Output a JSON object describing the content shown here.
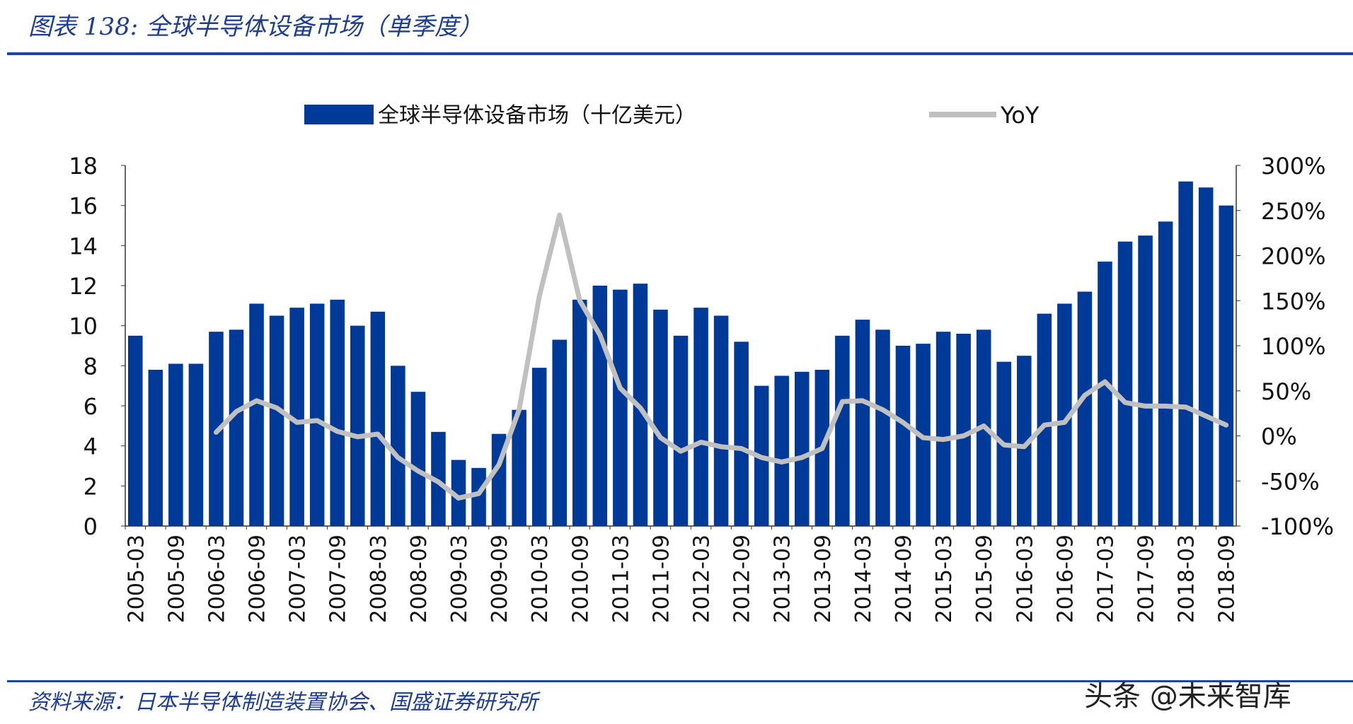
{
  "header": {
    "title": "图表 138:  全球半导体设备市场（单季度）"
  },
  "footer": {
    "source": "资料来源：日本半导体制造装置协会、国盛证券研究所",
    "watermark": "头条 @未来智库"
  },
  "colors": {
    "bar": "#003a98",
    "line": "#c0c0c0",
    "text": "#1c3d94"
  },
  "chart_data": {
    "type": "bar",
    "title": "",
    "legend": [
      "全球半导体设备市场（十亿美元）",
      "YoY"
    ],
    "legend_position": "top",
    "categories": [
      "2005-03",
      "2005-06",
      "2005-09",
      "2005-12",
      "2006-03",
      "2006-06",
      "2006-09",
      "2006-12",
      "2007-03",
      "2007-06",
      "2007-09",
      "2007-12",
      "2008-03",
      "2008-06",
      "2008-09",
      "2008-12",
      "2009-03",
      "2009-06",
      "2009-09",
      "2009-12",
      "2010-03",
      "2010-06",
      "2010-09",
      "2010-12",
      "2011-03",
      "2011-06",
      "2011-09",
      "2011-12",
      "2012-03",
      "2012-06",
      "2012-09",
      "2012-12",
      "2013-03",
      "2013-06",
      "2013-09",
      "2013-12",
      "2014-03",
      "2014-06",
      "2014-09",
      "2014-12",
      "2015-03",
      "2015-06",
      "2015-09",
      "2015-12",
      "2016-03",
      "2016-06",
      "2016-09",
      "2016-12",
      "2017-03",
      "2017-06",
      "2017-09",
      "2017-12",
      "2018-03",
      "2018-06",
      "2018-09"
    ],
    "x_tick_labels": [
      "2005-03",
      "2005-09",
      "2006-03",
      "2006-09",
      "2007-03",
      "2007-09",
      "2008-03",
      "2008-09",
      "2009-03",
      "2009-09",
      "2010-03",
      "2010-09",
      "2011-03",
      "2011-09",
      "2012-03",
      "2012-09",
      "2013-03",
      "2013-09",
      "2014-03",
      "2014-09",
      "2015-03",
      "2015-09",
      "2016-03",
      "2016-09",
      "2017-03",
      "2017-09",
      "2018-03",
      "2018-09"
    ],
    "series": [
      {
        "name": "全球半导体设备市场（十亿美元）",
        "type": "bar",
        "axis": "left",
        "values": [
          9.5,
          7.8,
          8.1,
          8.1,
          9.7,
          9.8,
          11.1,
          10.5,
          10.9,
          11.1,
          11.3,
          10.0,
          10.7,
          8.0,
          6.7,
          4.7,
          3.3,
          2.9,
          4.6,
          5.8,
          7.9,
          9.3,
          11.3,
          12.0,
          11.8,
          12.1,
          10.8,
          9.5,
          10.9,
          10.5,
          9.2,
          7.0,
          7.5,
          7.7,
          7.8,
          9.5,
          10.3,
          9.8,
          9.0,
          9.1,
          9.7,
          9.6,
          9.8,
          8.2,
          8.5,
          10.6,
          11.1,
          11.7,
          13.2,
          14.2,
          14.5,
          15.2,
          17.2,
          16.9,
          16.0
        ]
      },
      {
        "name": "YoY",
        "type": "line",
        "axis": "right",
        "unit": "%",
        "values": [
          null,
          null,
          null,
          null,
          4,
          27,
          39,
          31,
          15,
          17,
          5,
          -1,
          2,
          -24,
          -39,
          -51,
          -69,
          -64,
          -32,
          29,
          155,
          245,
          150,
          112,
          53,
          31,
          -2,
          -17,
          -7,
          -12,
          -14,
          -24,
          -29,
          -24,
          -14,
          38,
          39,
          29,
          15,
          -2,
          -4,
          0,
          11,
          -10,
          -12,
          12,
          15,
          45,
          60,
          37,
          33,
          33,
          32,
          22,
          12
        ]
      }
    ],
    "ylim": [
      0,
      18
    ],
    "yticks": [
      0,
      2,
      4,
      6,
      8,
      10,
      12,
      14,
      16,
      18
    ],
    "y2lim": [
      -100,
      300
    ],
    "y2ticks": [
      -100,
      -50,
      0,
      50,
      100,
      150,
      200,
      250,
      300
    ],
    "y2tick_labels": [
      "-100%",
      "-50%",
      "0%",
      "50%",
      "100%",
      "150%",
      "200%",
      "250%",
      "300%"
    ],
    "grid": false
  }
}
